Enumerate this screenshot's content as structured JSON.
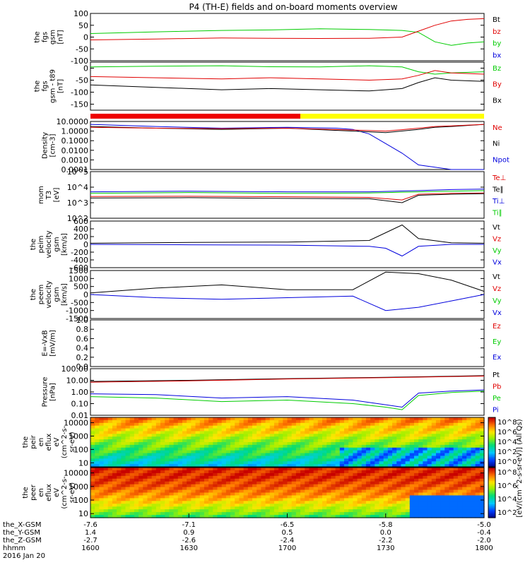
{
  "title": "P4 (TH-E) fields and on-board moments overview",
  "chart_data": {
    "type": "line",
    "title": "P4 (TH-E) fields and on-board moments overview",
    "date_label": "2016 Jan 20",
    "time_range": [
      "1600",
      "1800"
    ],
    "x_ticks": {
      "hhmm": [
        "1600",
        "1630",
        "1700",
        "1730",
        "1800"
      ],
      "rows": [
        {
          "label": "the_X-GSM",
          "values": [
            "-7.6",
            "-7.1",
            "-6.5",
            "-5.8",
            "-5.0"
          ]
        },
        {
          "label": "the_Y-GSM",
          "values": [
            "1.4",
            "0.9",
            "0.5",
            "0.0",
            "-0.4"
          ]
        },
        {
          "label": "the_Z-GSM",
          "values": [
            "-2.7",
            "-2.6",
            "-2.4",
            "-2.2",
            "-2.0"
          ]
        },
        {
          "label": "hhmm",
          "values": [
            "1600",
            "1630",
            "1700",
            "1730",
            "1800"
          ]
        }
      ]
    },
    "panels": [
      {
        "id": "fgs-gsm",
        "ylabel_lines": [
          "the",
          "fgs",
          "gsm",
          "[nT]"
        ],
        "y_ticks": [
          "100",
          "50",
          "0",
          "-50",
          "-100"
        ],
        "ylim": [
          -100,
          100
        ],
        "legend": [
          {
            "text": "Bt",
            "color": "#000000"
          },
          {
            "text": "bz",
            "color": "#e00000"
          },
          {
            "text": "by",
            "color": "#00cc00"
          },
          {
            "text": "bx",
            "color": "#0000dd"
          }
        ],
        "series": [
          {
            "name": "by",
            "color": "#00cc00",
            "x": [
              0,
              20,
              40,
              55,
              70,
              85,
              95,
              100,
              105,
              110,
              115,
              120
            ],
            "y": [
              15,
              22,
              28,
              30,
              35,
              32,
              28,
              20,
              -20,
              -35,
              -25,
              -20
            ]
          },
          {
            "name": "bz",
            "color": "#e00000",
            "x": [
              0,
              20,
              40,
              55,
              70,
              85,
              95,
              100,
              105,
              110,
              115,
              120
            ],
            "y": [
              -12,
              -8,
              -4,
              -5,
              -6,
              -5,
              0,
              25,
              50,
              68,
              75,
              78
            ]
          }
        ]
      },
      {
        "id": "fgs-gsm-tt89",
        "ylabel_lines": [
          "the",
          "fgs",
          "gsm - t89",
          "[nT]"
        ],
        "y_ticks": [
          "0",
          "-50",
          "-100",
          "-150"
        ],
        "ylim": [
          -175,
          25
        ],
        "legend": [
          {
            "text": "Bz",
            "color": "#00cc00"
          },
          {
            "text": "By",
            "color": "#e00000"
          },
          {
            "text": "Bx",
            "color": "#000000"
          }
        ],
        "series": [
          {
            "name": "Bz",
            "color": "#00cc00",
            "x": [
              0,
              20,
              40,
              55,
              70,
              85,
              95,
              100,
              105,
              110,
              120
            ],
            "y": [
              5,
              8,
              10,
              6,
              5,
              10,
              5,
              -15,
              -25,
              -20,
              -15
            ]
          },
          {
            "name": "By",
            "color": "#e00000",
            "x": [
              0,
              20,
              40,
              55,
              70,
              85,
              95,
              100,
              105,
              110,
              120
            ],
            "y": [
              -35,
              -40,
              -45,
              -40,
              -45,
              -50,
              -45,
              -30,
              -10,
              -20,
              -25
            ]
          },
          {
            "name": "Bx",
            "color": "#000000",
            "x": [
              0,
              20,
              40,
              55,
              70,
              85,
              95,
              100,
              105,
              110,
              120
            ],
            "y": [
              -70,
              -80,
              -90,
              -85,
              -90,
              -95,
              -85,
              -60,
              -40,
              -50,
              -55
            ]
          }
        ]
      },
      {
        "id": "mode-bar",
        "segments": [
          {
            "color": "#ee0000",
            "start": 0,
            "end": 64
          },
          {
            "color": "#ffff00",
            "start": 64,
            "end": 120
          }
        ]
      },
      {
        "id": "density",
        "ylabel_lines": [
          "Density",
          "[cm-3]"
        ],
        "y_ticks": [
          "10.0000",
          "1.0000",
          "0.1000",
          "0.0100",
          "0.0010",
          "0.0001"
        ],
        "ylog": true,
        "ylim": [
          0.0001,
          10
        ],
        "legend": [
          {
            "text": "Ne",
            "color": "#e00000"
          },
          {
            "text": "Ni",
            "color": "#000000"
          },
          {
            "text": "Npot",
            "color": "#0000dd"
          }
        ],
        "series": [
          {
            "name": "Npot",
            "color": "#0000dd",
            "x": [
              0,
              20,
              40,
              60,
              75,
              80,
              85,
              90,
              95,
              100,
              110,
              120
            ],
            "y": [
              5,
              3,
              2,
              2.5,
              2,
              1.5,
              0.5,
              0.05,
              0.005,
              0.0003,
              0.0001,
              0.0001
            ]
          },
          {
            "name": "Ni",
            "color": "#000000",
            "x": [
              0,
              20,
              40,
              60,
              80,
              90,
              100,
              105,
              110,
              120
            ],
            "y": [
              3,
              2,
              1.5,
              2,
              1,
              0.7,
              1.5,
              2.5,
              3,
              5
            ]
          },
          {
            "name": "Ne",
            "color": "#e00000",
            "x": [
              0,
              20,
              40,
              60,
              80,
              90,
              100,
              105,
              110,
              120
            ],
            "y": [
              2.5,
              2,
              1.8,
              2,
              1.3,
              1,
              2,
              3,
              3.5,
              5
            ]
          }
        ]
      },
      {
        "id": "temperature",
        "ylabel_lines": [
          "mom",
          "T3",
          "[eV]"
        ],
        "y_ticks": [
          "10^5",
          "10^4",
          "10^3",
          "10^2"
        ],
        "ylog": true,
        "ylim": [
          100,
          100000
        ],
        "legend": [
          {
            "text": "Te⊥",
            "color": "#e00000"
          },
          {
            "text": "Te∥",
            "color": "#000000"
          },
          {
            "text": "Ti⊥",
            "color": "#0000dd"
          },
          {
            "text": "Ti∥",
            "color": "#00cc00"
          }
        ],
        "series": [
          {
            "name": "Ti⊥",
            "color": "#0000dd",
            "x": [
              0,
              30,
              60,
              85,
              100,
              110,
              120
            ],
            "y": [
              5000,
              5500,
              5000,
              5000,
              6000,
              7000,
              7500
            ]
          },
          {
            "name": "Ti∥",
            "color": "#00cc00",
            "x": [
              0,
              30,
              60,
              85,
              100,
              110,
              120
            ],
            "y": [
              4000,
              4500,
              4000,
              4200,
              5000,
              5500,
              6000
            ]
          },
          {
            "name": "Te⊥",
            "color": "#e00000",
            "x": [
              0,
              30,
              60,
              85,
              95,
              100,
              110,
              120
            ],
            "y": [
              2500,
              2600,
              2400,
              2200,
              1500,
              3500,
              4000,
              4200
            ]
          },
          {
            "name": "Te∥",
            "color": "#000000",
            "x": [
              0,
              30,
              60,
              85,
              95,
              100,
              110,
              120
            ],
            "y": [
              2000,
              2100,
              1900,
              1800,
              1000,
              3000,
              3500,
              3800
            ]
          }
        ]
      },
      {
        "id": "peim-velocity",
        "ylabel_lines": [
          "the",
          "peim",
          "velocity",
          "gsm",
          "[km/s]"
        ],
        "y_ticks": [
          "600",
          "400",
          "200",
          "0",
          "-200",
          "-400",
          "-600"
        ],
        "ylim": [
          -600,
          600
        ],
        "legend": [
          {
            "text": "Vt",
            "color": "#000000"
          },
          {
            "text": "Vz",
            "color": "#e00000"
          },
          {
            "text": "Vy",
            "color": "#00cc00"
          },
          {
            "text": "Vx",
            "color": "#0000dd"
          }
        ],
        "series": [
          {
            "name": "Vx",
            "color": "#0000dd",
            "x": [
              0,
              30,
              60,
              85,
              90,
              95,
              100,
              110,
              120
            ],
            "y": [
              0,
              -10,
              -20,
              -50,
              -100,
              -300,
              -50,
              0,
              0
            ]
          },
          {
            "name": "Vt",
            "color": "#000000",
            "x": [
              0,
              30,
              60,
              85,
              90,
              95,
              100,
              110,
              120
            ],
            "y": [
              30,
              50,
              60,
              100,
              300,
              500,
              150,
              40,
              30
            ]
          }
        ]
      },
      {
        "id": "peem-velocity",
        "ylabel_lines": [
          "the",
          "peem",
          "velocity",
          "gsm",
          "[km/s]"
        ],
        "y_ticks": [
          "1500",
          "1000",
          "500",
          "0",
          "-500",
          "-1000",
          "-1500"
        ],
        "ylim": [
          -1500,
          1500
        ],
        "legend": [
          {
            "text": "Vt",
            "color": "#000000"
          },
          {
            "text": "Vz",
            "color": "#e00000"
          },
          {
            "text": "Vy",
            "color": "#00cc00"
          },
          {
            "text": "Vx",
            "color": "#0000dd"
          }
        ],
        "series": [
          {
            "name": "Vx",
            "color": "#0000dd",
            "x": [
              0,
              20,
              40,
              60,
              80,
              90,
              100,
              110,
              120
            ],
            "y": [
              0,
              -200,
              -300,
              -200,
              -100,
              -1000,
              -800,
              -400,
              0
            ]
          },
          {
            "name": "Vt",
            "color": "#000000",
            "x": [
              0,
              20,
              40,
              60,
              80,
              90,
              100,
              110,
              120
            ],
            "y": [
              100,
              400,
              600,
              300,
              300,
              1400,
              1300,
              900,
              200
            ]
          }
        ]
      },
      {
        "id": "e-field",
        "ylabel_lines": [
          "E=-VxB",
          "[mV/m]"
        ],
        "y_ticks": [
          "1.0",
          "0.8",
          "0.6",
          "0.4",
          "0.2",
          "0.0"
        ],
        "ylim": [
          0,
          1
        ],
        "legend": [
          {
            "text": "Ez",
            "color": "#e00000"
          },
          {
            "text": "Ey",
            "color": "#00cc00"
          },
          {
            "text": "Ex",
            "color": "#0000dd"
          }
        ],
        "series": []
      },
      {
        "id": "pressure",
        "ylabel_lines": [
          "Pressure",
          "[nPa]"
        ],
        "y_ticks": [
          "100.00",
          "10.00",
          "1.00",
          "0.10",
          "0.01"
        ],
        "ylog": true,
        "ylim": [
          0.01,
          100
        ],
        "legend": [
          {
            "text": "Pt",
            "color": "#000000"
          },
          {
            "text": "Pb",
            "color": "#e00000"
          },
          {
            "text": "Pe",
            "color": "#00cc00"
          },
          {
            "text": "Pi",
            "color": "#0000dd"
          }
        ],
        "series": [
          {
            "name": "Pt",
            "color": "#000000",
            "x": [
              0,
              30,
              60,
              90,
              120
            ],
            "y": [
              8,
              10,
              14,
              18,
              25
            ]
          },
          {
            "name": "Pb",
            "color": "#e00000",
            "x": [
              0,
              30,
              60,
              90,
              120
            ],
            "y": [
              7,
              9,
              13,
              17,
              23
            ]
          },
          {
            "name": "Pi",
            "color": "#0000dd",
            "x": [
              0,
              20,
              40,
              60,
              80,
              90,
              95,
              100,
              110,
              120
            ],
            "y": [
              0.7,
              0.6,
              0.3,
              0.4,
              0.2,
              0.08,
              0.05,
              0.8,
              1.2,
              1.5
            ]
          },
          {
            "name": "Pe",
            "color": "#00cc00",
            "x": [
              0,
              20,
              40,
              60,
              80,
              90,
              95,
              100,
              110,
              120
            ],
            "y": [
              0.4,
              0.3,
              0.15,
              0.2,
              0.1,
              0.05,
              0.03,
              0.5,
              0.9,
              1.2
            ]
          }
        ]
      },
      {
        "id": "peir-spectrogram",
        "ylabel_lines": [
          "the",
          "peir",
          "en",
          "eflux",
          "eV",
          "(cm^2-s-",
          "sr-eV)"
        ],
        "y_ticks": [
          "10000",
          "1000",
          "100",
          "10"
        ],
        "ylog": true,
        "ylim": [
          5,
          25000
        ]
      },
      {
        "id": "peer-spectrogram",
        "ylabel_lines": [
          "the",
          "peer",
          "en",
          "eflux",
          "eV",
          "(cm^2-s-",
          "sr-eV)"
        ],
        "y_ticks": [
          "10000",
          "1000",
          "100",
          "10"
        ],
        "ylog": true,
        "ylim": [
          5,
          25000
        ]
      }
    ],
    "colorbars": [
      {
        "panel": "peir-spectrogram",
        "ticks": [
          "10^8",
          "10^6",
          "10^4",
          "10^2",
          "10^0"
        ]
      },
      {
        "panel": "peer-spectrogram",
        "ticks": [
          "10^8",
          "10^6",
          "10^4",
          "10^2"
        ]
      }
    ],
    "colorbar_label": "[eV/(cm^2-s-sr-eV)] (All Qs)"
  }
}
